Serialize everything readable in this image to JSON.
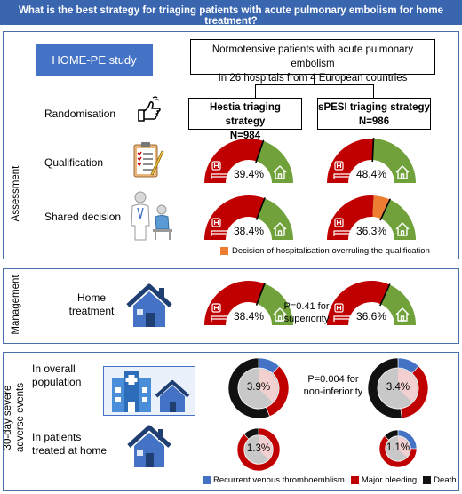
{
  "title": "What is the best strategy for triaging patients with acute pulmonary embolism for home treatment?",
  "study": "HOME-PE study",
  "population": {
    "line1": "Normotensive patients with acute pulmonary embolism",
    "line2": "In 26 hospitals from 4 European countries"
  },
  "arms": [
    {
      "name": "Hestia triaging strategy",
      "n": "N=984"
    },
    {
      "name": "sPESI triaging strategy",
      "n": "N=986"
    }
  ],
  "sections": {
    "assessment": "Assessment",
    "management": "Management",
    "adverse": [
      "30-day severe",
      "adverse events"
    ]
  },
  "rows": {
    "randomisation": "Randomisation",
    "qualification": "Qualification",
    "shared_decision": "Shared decision",
    "home_treatment": [
      "Home",
      "treatment"
    ],
    "overall_population": [
      "In overall",
      "population"
    ],
    "treated_home": [
      "In patients",
      "treated at home"
    ]
  },
  "gauges": {
    "qualification": [
      {
        "home_fraction": 0.394,
        "label": "39.4%"
      },
      {
        "home_fraction": 0.484,
        "label": "48.4%"
      }
    ],
    "shared_decision": [
      {
        "home_fraction": 0.384,
        "label": "38.4%"
      },
      {
        "home_fraction": 0.363,
        "overrule_fraction": 0.12,
        "label": "36.3%"
      }
    ],
    "home_treatment": [
      {
        "home_fraction": 0.384,
        "label": "38.4%"
      },
      {
        "home_fraction": 0.366,
        "label": "36.6%"
      }
    ]
  },
  "overrule_legend": "Decision of hospitalisation overruling the qualification",
  "p_superiority": [
    "P=0.41 for",
    "superiority"
  ],
  "p_noninferiority": [
    "P=0.004 for",
    "non-inferiority"
  ],
  "donuts": {
    "overall": [
      {
        "label": "3.9%",
        "recurrent_vte": 0.12,
        "major_bleeding": 0.32,
        "death": 0.56
      },
      {
        "label": "3.4%",
        "recurrent_vte": 0.12,
        "major_bleeding": 0.36,
        "death": 0.52
      }
    ],
    "home": [
      {
        "label": "1.3%",
        "recurrent_vte": 0.0,
        "major_bleeding": 0.88,
        "death": 0.12
      },
      {
        "label": "1.1%",
        "recurrent_vte": 0.25,
        "major_bleeding": 0.62,
        "death": 0.13
      }
    ]
  },
  "legend": [
    {
      "label": "Recurrent venous thromboemblism",
      "color": "#4472c4"
    },
    {
      "label": "Major bleeding",
      "color": "#c00000"
    },
    {
      "label": "Death",
      "color": "#111111"
    }
  ],
  "colors": {
    "hospital": "#c00000",
    "home": "#70a13a",
    "overrule": "#ed7d31",
    "accent": "#4472c4",
    "frame": "#4a6fa5"
  },
  "icons": [
    "hand-pointing-icon",
    "checklist-icon",
    "doctor-patient-icon",
    "house-icon",
    "hospital-building-icon",
    "hospital-bed-icon"
  ]
}
